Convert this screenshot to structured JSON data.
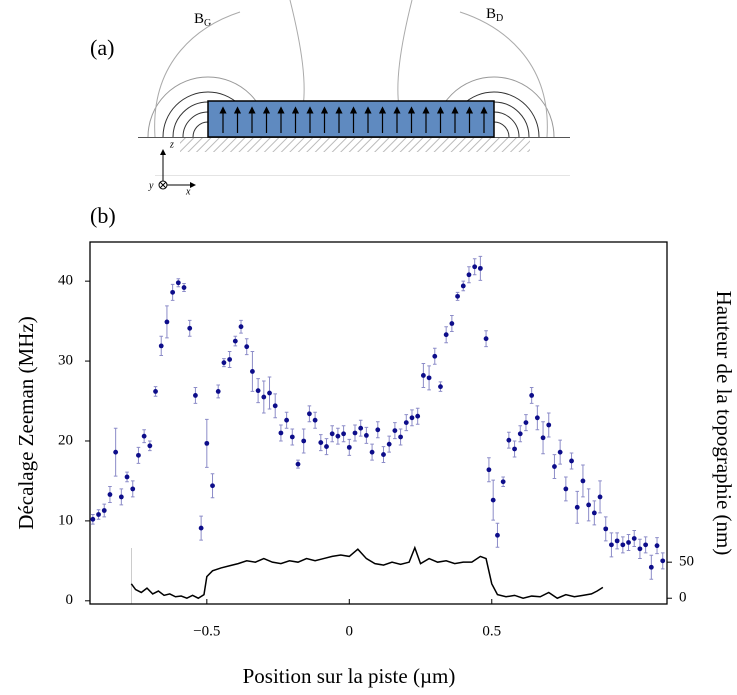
{
  "schematic": {
    "panel_label": "(a)",
    "field_left": {
      "symbol": "B",
      "subscript": "G"
    },
    "field_right": {
      "symbol": "B",
      "subscript": "D"
    },
    "axis_z": "z",
    "axis_y": "y",
    "axis_x": "x"
  },
  "chart_data": {
    "type": "scatter",
    "panel_label": "(b)",
    "x_label": "Position sur la piste (µm)",
    "y_label": "Décalage Zeeman (MHz)",
    "y2_label": "Hauteur de la topographie (nm)",
    "xlim": [
      -0.91,
      1.115
    ],
    "ylim": [
      -0.4,
      44.9
    ],
    "y2lim": [
      -8,
      494
    ],
    "xticks": [
      {
        "value": -0.5,
        "label": "−0.5"
      },
      0,
      0.5
    ],
    "yticks": [
      0,
      10,
      20,
      30,
      40
    ],
    "y2ticks": [
      0,
      50
    ],
    "grid": false,
    "series": [
      {
        "type": "scatter",
        "color": "#0d0d8a",
        "error_color": "#8c8cc8",
        "x": [
          -0.9,
          -0.88,
          -0.86,
          -0.84,
          -0.82,
          -0.8,
          -0.78,
          -0.76,
          -0.74,
          -0.72,
          -0.7,
          -0.68,
          -0.66,
          -0.64,
          -0.62,
          -0.6,
          -0.58,
          -0.56,
          -0.54,
          -0.52,
          -0.5,
          -0.48,
          -0.46,
          -0.44,
          -0.42,
          -0.4,
          -0.38,
          -0.36,
          -0.34,
          -0.32,
          -0.3,
          -0.28,
          -0.26,
          -0.24,
          -0.22,
          -0.2,
          -0.18,
          -0.16,
          -0.14,
          -0.12,
          -0.1,
          -0.08,
          -0.06,
          -0.04,
          -0.02,
          0.0,
          0.02,
          0.04,
          0.06,
          0.08,
          0.1,
          0.12,
          0.14,
          0.16,
          0.18,
          0.2,
          0.22,
          0.24,
          0.26,
          0.28,
          0.3,
          0.32,
          0.34,
          0.36,
          0.38,
          0.4,
          0.42,
          0.44,
          0.46,
          0.48,
          0.49,
          0.505,
          0.52,
          0.54,
          0.56,
          0.58,
          0.6,
          0.62,
          0.64,
          0.66,
          0.68,
          0.7,
          0.72,
          0.74,
          0.76,
          0.78,
          0.8,
          0.82,
          0.84,
          0.86,
          0.88,
          0.9,
          0.92,
          0.94,
          0.96,
          0.98,
          1.0,
          1.02,
          1.04,
          1.06,
          1.08,
          1.1
        ],
        "values": [
          10.2,
          10.8,
          11.3,
          13.3,
          18.6,
          13.0,
          15.5,
          14.0,
          18.2,
          20.6,
          19.4,
          26.2,
          31.9,
          34.9,
          38.6,
          39.8,
          39.2,
          34.1,
          25.7,
          9.1,
          19.7,
          14.4,
          26.2,
          29.8,
          30.2,
          32.5,
          34.3,
          31.8,
          28.7,
          26.3,
          25.5,
          26.0,
          24.4,
          21.0,
          22.6,
          20.5,
          17.1,
          20.0,
          23.4,
          22.6,
          19.8,
          19.3,
          20.9,
          20.6,
          20.9,
          19.2,
          21.0,
          21.6,
          20.7,
          18.6,
          21.4,
          18.3,
          19.6,
          21.3,
          20.5,
          22.3,
          22.9,
          23.1,
          28.2,
          27.9,
          30.6,
          26.8,
          33.3,
          34.7,
          38.1,
          39.4,
          40.8,
          41.8,
          41.6,
          32.8,
          16.4,
          12.6,
          8.2,
          14.9,
          20.1,
          19.0,
          20.9,
          22.3,
          25.7,
          22.9,
          20.4,
          22.0,
          16.8,
          18.6,
          14.0,
          17.5,
          11.7,
          15.0,
          12.0,
          11.0,
          13.0,
          9.0,
          7.0,
          7.5,
          7.0,
          7.3,
          7.8,
          6.5,
          7.0,
          4.2,
          6.9,
          5.0
        ],
        "errors": [
          0.6,
          0.6,
          0.8,
          1,
          3,
          1,
          0.6,
          1,
          1,
          0.8,
          0.6,
          0.6,
          1.2,
          2,
          1,
          0.5,
          0.5,
          1,
          1,
          1.5,
          3,
          1.5,
          0.8,
          0.5,
          1,
          0.6,
          0.8,
          1,
          2.5,
          1.5,
          2,
          2,
          1.5,
          1,
          1,
          1,
          0.5,
          1.5,
          1,
          1,
          1,
          1,
          1,
          1,
          1,
          1,
          1,
          1,
          1,
          1,
          1,
          1,
          1,
          1,
          1,
          1,
          1,
          1,
          1.5,
          1.5,
          1,
          0.6,
          1,
          1,
          0.5,
          0.6,
          1,
          1,
          1.5,
          1,
          1.5,
          2.5,
          1.5,
          0.6,
          1,
          1,
          1,
          1,
          1,
          1.5,
          2,
          1.5,
          1.5,
          1.5,
          1.5,
          1,
          2,
          2,
          2,
          1.5,
          2,
          1.5,
          1.5,
          1,
          1,
          1,
          1,
          1.2,
          1,
          1.5,
          1,
          1
        ]
      },
      {
        "type": "line",
        "axis": "y2",
        "color": "#000000",
        "x": [
          -0.765,
          -0.75,
          -0.73,
          -0.71,
          -0.69,
          -0.67,
          -0.65,
          -0.63,
          -0.61,
          -0.59,
          -0.57,
          -0.55,
          -0.53,
          -0.51,
          -0.5,
          -0.48,
          -0.45,
          -0.42,
          -0.39,
          -0.36,
          -0.33,
          -0.3,
          -0.27,
          -0.24,
          -0.21,
          -0.18,
          -0.15,
          -0.12,
          -0.09,
          -0.06,
          -0.03,
          0.0,
          0.03,
          0.06,
          0.09,
          0.12,
          0.15,
          0.18,
          0.21,
          0.23,
          0.25,
          0.28,
          0.31,
          0.34,
          0.37,
          0.4,
          0.43,
          0.46,
          0.48,
          0.5,
          0.52,
          0.55,
          0.58,
          0.61,
          0.64,
          0.67,
          0.7,
          0.73,
          0.76,
          0.79,
          0.82,
          0.85,
          0.87,
          0.89
        ],
        "values": [
          20,
          12,
          8,
          14,
          6,
          10,
          4,
          6,
          2,
          3,
          0,
          4,
          0,
          5,
          30,
          38,
          42,
          45,
          48,
          52,
          50,
          55,
          50,
          48,
          52,
          50,
          55,
          52,
          55,
          58,
          60,
          58,
          68,
          55,
          48,
          46,
          50,
          47,
          50,
          70,
          48,
          55,
          50,
          52,
          48,
          50,
          50,
          58,
          55,
          20,
          5,
          2,
          4,
          0,
          3,
          2,
          8,
          0,
          5,
          2,
          4,
          6,
          10,
          15
        ]
      }
    ]
  }
}
